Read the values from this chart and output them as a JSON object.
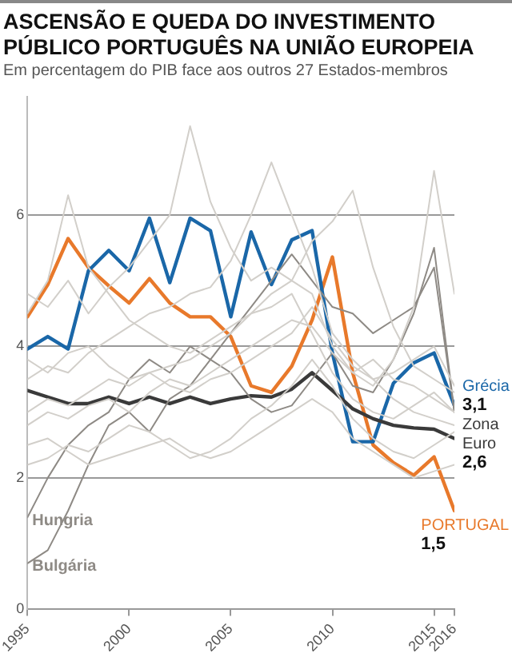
{
  "chart_data": {
    "type": "line",
    "title": "ASCENSÃO E QUEDA DO INVESTIMENTO PÚBLICO PORTUGUÊS NA UNIÃO EUROPEIA",
    "subtitle": "Em percentagem do PIB face aos outros 27 Estados-membros",
    "x": [
      1995,
      1996,
      1997,
      1998,
      1999,
      2000,
      2001,
      2002,
      2003,
      2004,
      2005,
      2006,
      2007,
      2008,
      2009,
      2010,
      2011,
      2012,
      2013,
      2014,
      2015,
      2016
    ],
    "xlim": [
      1995,
      2016
    ],
    "xticks": [
      1995,
      2000,
      2005,
      2010,
      2015,
      2016
    ],
    "ylim": [
      0,
      7.8
    ],
    "yticks": [
      0,
      2,
      4,
      6
    ],
    "grid": "y",
    "legend": false,
    "marker": "none",
    "line_style": "solid",
    "series": [
      {
        "color": "#d2cfca",
        "values": [
          4.8,
          4.6,
          5.0,
          4.5,
          4.9,
          5.2,
          5.6,
          6.0,
          7.35,
          6.2,
          5.5,
          5.0,
          5.2,
          5.0,
          4.8,
          4.0,
          3.6,
          3.8,
          3.5,
          3.4,
          3.2,
          3.0
        ]
      },
      {
        "color": "#d2cfca",
        "values": [
          4.5,
          5.0,
          6.3,
          5.2,
          4.8,
          4.4,
          4.2,
          4.0,
          3.9,
          4.1,
          4.3,
          4.5,
          4.6,
          4.8,
          4.2,
          3.6,
          3.2,
          3.0,
          2.9,
          3.1,
          3.3,
          3.0
        ]
      },
      {
        "color": "#d2cfca",
        "values": [
          3.5,
          3.7,
          3.6,
          3.9,
          4.1,
          4.3,
          4.5,
          4.6,
          4.8,
          4.9,
          5.3,
          6.0,
          6.8,
          6.0,
          5.2,
          4.2,
          3.8,
          3.5,
          3.6,
          3.8,
          4.0,
          3.4
        ]
      },
      {
        "color": "#d2cfca",
        "values": [
          3.0,
          3.2,
          3.1,
          3.3,
          3.5,
          3.4,
          3.6,
          3.7,
          3.8,
          4.0,
          4.2,
          4.5,
          4.8,
          5.0,
          5.6,
          5.9,
          6.37,
          5.2,
          4.3,
          3.7,
          3.5,
          3.3
        ]
      },
      {
        "color": "#d2cfca",
        "values": [
          2.8,
          3.0,
          2.9,
          3.1,
          3.2,
          3.0,
          3.3,
          3.5,
          3.4,
          3.6,
          3.8,
          4.0,
          4.2,
          4.4,
          4.3,
          3.9,
          3.6,
          3.4,
          3.8,
          4.6,
          6.67,
          4.8
        ]
      },
      {
        "color": "#d2cfca",
        "values": [
          2.5,
          2.6,
          2.4,
          2.2,
          2.3,
          2.4,
          2.5,
          2.6,
          2.4,
          2.3,
          2.4,
          2.6,
          2.8,
          3.0,
          3.2,
          3.0,
          2.6,
          2.4,
          2.2,
          2.0,
          2.1,
          2.2
        ]
      },
      {
        "color": "#d2cfca",
        "values": [
          3.8,
          3.6,
          3.9,
          4.0,
          3.7,
          3.5,
          3.6,
          3.4,
          3.3,
          3.5,
          3.6,
          3.8,
          4.0,
          4.2,
          4.6,
          4.1,
          3.7,
          3.5,
          3.2,
          3.0,
          2.9,
          2.8
        ]
      },
      {
        "color": "#d2cfca",
        "values": [
          2.2,
          2.3,
          2.5,
          2.4,
          2.6,
          2.8,
          2.7,
          2.5,
          2.3,
          2.4,
          2.6,
          2.9,
          3.1,
          3.4,
          3.8,
          3.4,
          2.9,
          2.6,
          2.4,
          2.3,
          2.5,
          2.7
        ]
      },
      {
        "name": "Hungria",
        "color": "#8e8a85",
        "values": [
          1.4,
          2.0,
          2.5,
          2.8,
          3.0,
          3.5,
          3.8,
          3.6,
          4.0,
          3.8,
          3.6,
          3.2,
          3.0,
          3.1,
          3.5,
          3.9,
          3.4,
          3.3,
          3.8,
          4.5,
          5.5,
          3.0
        ]
      },
      {
        "name": "Bulgária",
        "color": "#8e8a85",
        "values": [
          0.7,
          0.9,
          1.5,
          2.2,
          2.8,
          3.0,
          2.7,
          3.2,
          3.4,
          3.8,
          4.2,
          4.6,
          5.0,
          5.4,
          5.0,
          4.6,
          4.5,
          4.2,
          4.4,
          4.6,
          5.2,
          3.0
        ]
      },
      {
        "name": "Zona Euro",
        "color": "#3a3a3a",
        "values": [
          3.33,
          3.23,
          3.13,
          3.13,
          3.23,
          3.13,
          3.23,
          3.13,
          3.23,
          3.13,
          3.2,
          3.25,
          3.23,
          3.35,
          3.6,
          3.33,
          3.05,
          2.9,
          2.8,
          2.76,
          2.74,
          2.6
        ],
        "value_labels": [
          null,
          null,
          null,
          null,
          null,
          null,
          null,
          null,
          null,
          null,
          null,
          null,
          null,
          null,
          null,
          null,
          null,
          null,
          null,
          null,
          null,
          "2,6"
        ]
      },
      {
        "name": "Grécia",
        "color": "#1a67a8",
        "values": [
          3.96,
          4.15,
          3.96,
          5.15,
          5.46,
          5.15,
          5.95,
          4.97,
          5.95,
          5.76,
          4.45,
          5.74,
          4.94,
          5.62,
          5.76,
          3.9,
          2.55,
          2.55,
          3.44,
          3.75,
          3.9,
          3.1
        ],
        "value_labels": [
          null,
          null,
          null,
          null,
          null,
          null,
          null,
          null,
          null,
          null,
          null,
          null,
          null,
          null,
          null,
          null,
          null,
          null,
          null,
          null,
          null,
          "3,1"
        ]
      },
      {
        "name": "PORTUGAL",
        "color": "#e8792b",
        "values": [
          4.45,
          4.94,
          5.64,
          5.2,
          4.92,
          4.66,
          5.03,
          4.66,
          4.45,
          4.45,
          4.15,
          3.4,
          3.3,
          3.7,
          4.4,
          5.36,
          3.6,
          2.5,
          2.23,
          2.04,
          2.32,
          1.5
        ],
        "value_labels": [
          null,
          null,
          null,
          null,
          null,
          null,
          null,
          null,
          null,
          null,
          null,
          null,
          null,
          null,
          null,
          null,
          null,
          null,
          null,
          null,
          null,
          "1,5"
        ]
      }
    ]
  }
}
